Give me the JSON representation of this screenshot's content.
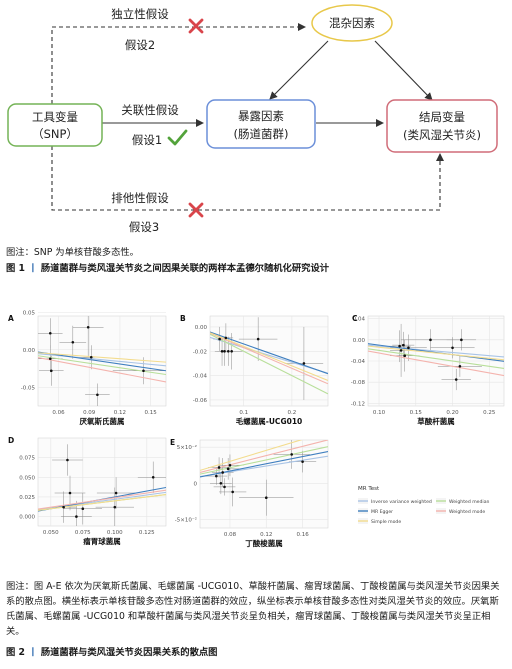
{
  "figure1": {
    "nodes": {
      "instrument": {
        "line1": "工具变量",
        "line2": "（SNP）"
      },
      "exposure": {
        "line1": "暴露因素",
        "line2": "(肠道菌群)"
      },
      "outcome": {
        "line1": "结局变量",
        "line2": "(类风湿关节炎)"
      },
      "confounder": {
        "label": "混杂因素"
      }
    },
    "edges": {
      "independence": {
        "label": "独立性假设",
        "hypothesis": "假设2"
      },
      "relevance": {
        "label": "关联性假设",
        "hypothesis": "假设1"
      },
      "exclusion": {
        "label": "排他性假设",
        "hypothesis": "假设3"
      }
    },
    "colors": {
      "instrument": "#74b356",
      "exposure": "#6b8fd9",
      "outcome": "#d06c78",
      "confounder": "#e8c84a",
      "cross": "#d9454b",
      "check": "#53a33b"
    },
    "note": "图注：SNP 为单核苷酸多态性。",
    "caption_num": "图 1",
    "caption_sep": "丨",
    "caption_text": "肠道菌群与类风湿关节炎之间因果关联的两样本孟德尔随机化研究设计"
  },
  "figure2": {
    "note": "图注：图 A-E 依次为厌氧斯氏菌属、毛螺菌属 -UCG010、草酸杆菌属、瘤胃球菌属、丁酸梭菌属与类风湿关节炎因果关系的散点图。横坐标表示单核苷酸多态性对肠道菌群的效应，纵坐标表示单核苷酸多态性对类风湿关节炎的效应。厌氧斯氏菌属、毛螺菌属 -UCG010 和草酸杆菌属与类风湿关节炎呈负相关，瘤胃球菌属、丁酸梭菌属与类风湿关节炎呈正相关。",
    "caption_num": "图 2",
    "caption_sep": "丨",
    "caption_text": "肠道菌群与类风湿关节炎因果关系的散点图",
    "legend": {
      "title": "MR Test",
      "items": [
        {
          "name": "Inverse variance weighted",
          "color": "#a9c4e6"
        },
        {
          "name": "Weighted median",
          "color": "#b8df9a"
        },
        {
          "name": "MR Egger",
          "color": "#3f7fbf"
        },
        {
          "name": "Weighted mode",
          "color": "#f4b3ad"
        },
        {
          "name": "Simple mode",
          "color": "#f3dc8e"
        }
      ]
    }
  },
  "chart_data": [
    {
      "type": "scatter",
      "panel": "A",
      "xlabel": "厌氧斯氏菌属",
      "ylabel": "",
      "xlim": [
        0.04,
        0.165
      ],
      "ylim": [
        -0.075,
        0.045
      ],
      "xticks": [
        0.06,
        0.09,
        0.12,
        0.15
      ],
      "xtick_labels": [
        "0.06",
        "0.09",
        "0.12",
        "0.15"
      ],
      "yticks": [
        -0.05,
        0,
        0.05
      ],
      "ytick_labels": [
        "-0.05",
        "0.00",
        "0.05"
      ],
      "points": [
        {
          "x": 0.052,
          "y": 0.022,
          "xerr": 0.012,
          "yerr": 0.02
        },
        {
          "x": 0.052,
          "y": -0.012,
          "xerr": 0.012,
          "yerr": 0.018
        },
        {
          "x": 0.053,
          "y": -0.028,
          "xerr": 0.012,
          "yerr": 0.02
        },
        {
          "x": 0.074,
          "y": 0.01,
          "xerr": 0.013,
          "yerr": 0.022
        },
        {
          "x": 0.089,
          "y": 0.03,
          "xerr": 0.015,
          "yerr": 0.04
        },
        {
          "x": 0.092,
          "y": -0.01,
          "xerr": 0.012,
          "yerr": 0.016
        },
        {
          "x": 0.098,
          "y": -0.06,
          "xerr": 0.012,
          "yerr": 0.015
        },
        {
          "x": 0.143,
          "y": -0.028,
          "xerr": 0.03,
          "yerr": 0.018
        }
      ],
      "lines": [
        {
          "method": "Inverse variance weighted",
          "slope": -0.13,
          "intercept": 0
        },
        {
          "method": "MR Egger",
          "slope": -0.2,
          "intercept": 0.005
        },
        {
          "method": "Weighted median",
          "slope": -0.2,
          "intercept": 0
        },
        {
          "method": "Weighted mode",
          "slope": -0.26,
          "intercept": 0
        },
        {
          "method": "Simple mode",
          "slope": -0.1,
          "intercept": 0
        }
      ]
    },
    {
      "type": "scatter",
      "panel": "B",
      "xlabel": "毛螺菌属-UCG010",
      "ylabel": "",
      "xlim": [
        0.03,
        0.275
      ],
      "ylim": [
        -0.065,
        0.009
      ],
      "xticks": [
        0.1,
        0.2
      ],
      "xtick_labels": [
        "0.1",
        "0.2"
      ],
      "yticks": [
        -0.06,
        -0.04,
        -0.02,
        0
      ],
      "ytick_labels": [
        "-0.06",
        "-0.04",
        "-0.02",
        "0.00"
      ],
      "points": [
        {
          "x": 0.05,
          "y": -0.01,
          "xerr": 0.013,
          "yerr": 0.01
        },
        {
          "x": 0.055,
          "y": -0.02,
          "xerr": 0.015,
          "yerr": 0.012
        },
        {
          "x": 0.06,
          "y": -0.02,
          "xerr": 0.015,
          "yerr": 0.012
        },
        {
          "x": 0.063,
          "y": -0.009,
          "xerr": 0.015,
          "yerr": 0.012
        },
        {
          "x": 0.068,
          "y": -0.02,
          "xerr": 0.015,
          "yerr": 0.012
        },
        {
          "x": 0.075,
          "y": -0.02,
          "xerr": 0.025,
          "yerr": 0.015
        },
        {
          "x": 0.13,
          "y": -0.01,
          "xerr": 0.04,
          "yerr": 0.018
        },
        {
          "x": 0.225,
          "y": -0.03,
          "xerr": 0.04,
          "yerr": 0.03
        }
      ],
      "lines": [
        {
          "method": "Inverse variance weighted",
          "slope": -0.12,
          "intercept": -0.005
        },
        {
          "method": "MR Egger",
          "slope": -0.14,
          "intercept": 0
        },
        {
          "method": "Weighted median",
          "slope": -0.2,
          "intercept": 0
        },
        {
          "method": "Weighted mode",
          "slope": -0.17,
          "intercept": 0
        },
        {
          "method": "Simple mode",
          "slope": -0.16,
          "intercept": 0
        }
      ]
    },
    {
      "type": "scatter",
      "panel": "C",
      "xlabel": "草酸杆菌属",
      "ylabel": "",
      "xlim": [
        0.085,
        0.27
      ],
      "ylim": [
        -0.125,
        0.045
      ],
      "xticks": [
        0.1,
        0.15,
        0.2,
        0.25
      ],
      "xtick_labels": [
        "0.10",
        "0.15",
        "0.20",
        "0.25"
      ],
      "yticks": [
        -0.12,
        -0.08,
        -0.04,
        0,
        0.04
      ],
      "ytick_labels": [
        "-0.12",
        "-0.08",
        "-0.04",
        "0.00",
        "0.04"
      ],
      "points": [
        {
          "x": 0.128,
          "y": -0.012,
          "xerr": 0.015,
          "yerr": 0.03
        },
        {
          "x": 0.13,
          "y": -0.02,
          "xerr": 0.015,
          "yerr": 0.05
        },
        {
          "x": 0.133,
          "y": -0.01,
          "xerr": 0.015,
          "yerr": 0.025
        },
        {
          "x": 0.135,
          "y": -0.03,
          "xerr": 0.02,
          "yerr": 0.03
        },
        {
          "x": 0.14,
          "y": -0.015,
          "xerr": 0.025,
          "yerr": 0.025
        },
        {
          "x": 0.17,
          "y": 0.0,
          "xerr": 0.04,
          "yerr": 0.02
        },
        {
          "x": 0.2,
          "y": -0.015,
          "xerr": 0.03,
          "yerr": 0.02
        },
        {
          "x": 0.205,
          "y": -0.075,
          "xerr": 0.02,
          "yerr": 0.02
        },
        {
          "x": 0.21,
          "y": -0.05,
          "xerr": 0.03,
          "yerr": 0.02
        },
        {
          "x": 0.212,
          "y": 0.0,
          "xerr": 0.02,
          "yerr": 0.02
        }
      ],
      "lines": [
        {
          "method": "Inverse variance weighted",
          "slope": -0.12,
          "intercept": 0
        },
        {
          "method": "MR Egger",
          "slope": -0.18,
          "intercept": 0.008
        },
        {
          "method": "Weighted median",
          "slope": -0.2,
          "intercept": 0
        },
        {
          "method": "Weighted mode",
          "slope": -0.25,
          "intercept": 0
        },
        {
          "method": "Simple mode",
          "slope": -0.14,
          "intercept": 0
        }
      ]
    },
    {
      "type": "scatter",
      "panel": "D",
      "xlabel": "瘤胃球菌属",
      "ylabel": "",
      "xlim": [
        0.04,
        0.14
      ],
      "ylim": [
        -0.012,
        0.1
      ],
      "xticks": [
        0.05,
        0.075,
        0.1,
        0.125
      ],
      "xtick_labels": [
        "0.050",
        "0.075",
        "0.100",
        "0.125"
      ],
      "yticks": [
        0,
        0.025,
        0.05,
        0.075
      ],
      "ytick_labels": [
        "0.000",
        "0.025",
        "0.050",
        "0.075"
      ],
      "points": [
        {
          "x": 0.06,
          "y": 0.012,
          "xerr": 0.01,
          "yerr": 0.02
        },
        {
          "x": 0.063,
          "y": 0.072,
          "xerr": 0.012,
          "yerr": 0.02
        },
        {
          "x": 0.065,
          "y": 0.03,
          "xerr": 0.012,
          "yerr": 0.022
        },
        {
          "x": 0.07,
          "y": 0.0,
          "xerr": 0.012,
          "yerr": 0.02
        },
        {
          "x": 0.075,
          "y": 0.01,
          "xerr": 0.015,
          "yerr": 0.02
        },
        {
          "x": 0.1,
          "y": 0.012,
          "xerr": 0.015,
          "yerr": 0.025
        },
        {
          "x": 0.101,
          "y": 0.03,
          "xerr": 0.015,
          "yerr": 0.02
        },
        {
          "x": 0.13,
          "y": 0.05,
          "xerr": 0.012,
          "yerr": 0.02
        }
      ],
      "lines": [
        {
          "method": "Inverse variance weighted",
          "slope": 0.22,
          "intercept": 0
        },
        {
          "method": "MR Egger",
          "slope": 0.3,
          "intercept": -0.005
        },
        {
          "method": "Weighted median",
          "slope": 0.2,
          "intercept": 0
        },
        {
          "method": "Weighted mode",
          "slope": 0.24,
          "intercept": 0
        },
        {
          "method": "Simple mode",
          "slope": 0.2,
          "intercept": 0
        }
      ]
    },
    {
      "type": "scatter",
      "panel": "E",
      "xlabel": "丁酸梭菌属",
      "ylabel": "",
      "xlim": [
        0.047,
        0.188
      ],
      "ylim": [
        -0.062,
        0.06
      ],
      "xticks": [
        0.08,
        0.12,
        0.16
      ],
      "xtick_labels": [
        "0.08",
        "0.12",
        "0.16"
      ],
      "yticks": [
        -0.05,
        0,
        0.05
      ],
      "ytick_labels": [
        "-5×10⁻²",
        "0",
        "5×10⁻²"
      ],
      "points": [
        {
          "x": 0.065,
          "y": 0.01,
          "xerr": 0.012,
          "yerr": 0.012
        },
        {
          "x": 0.068,
          "y": 0.022,
          "xerr": 0.012,
          "yerr": 0.014
        },
        {
          "x": 0.07,
          "y": 0.0,
          "xerr": 0.012,
          "yerr": 0.015
        },
        {
          "x": 0.072,
          "y": 0.015,
          "xerr": 0.012,
          "yerr": 0.02
        },
        {
          "x": 0.074,
          "y": -0.005,
          "xerr": 0.012,
          "yerr": 0.012
        },
        {
          "x": 0.078,
          "y": 0.02,
          "xerr": 0.012,
          "yerr": 0.015
        },
        {
          "x": 0.08,
          "y": 0.025,
          "xerr": 0.015,
          "yerr": 0.015
        },
        {
          "x": 0.083,
          "y": -0.012,
          "xerr": 0.015,
          "yerr": 0.02
        },
        {
          "x": 0.12,
          "y": -0.02,
          "xerr": 0.03,
          "yerr": 0.025
        },
        {
          "x": 0.148,
          "y": 0.04,
          "xerr": 0.02,
          "yerr": 0.02
        },
        {
          "x": 0.16,
          "y": 0.03,
          "xerr": 0.015,
          "yerr": 0.015
        }
      ],
      "lines": [
        {
          "method": "Inverse variance weighted",
          "slope": 0.2,
          "intercept": 0
        },
        {
          "method": "MR Egger",
          "slope": 0.25,
          "intercept": -0.003
        },
        {
          "method": "Weighted median",
          "slope": 0.27,
          "intercept": 0
        },
        {
          "method": "Weighted mode",
          "slope": 0.32,
          "intercept": 0
        },
        {
          "method": "Simple mode",
          "slope": 0.38,
          "intercept": 0
        }
      ]
    }
  ]
}
